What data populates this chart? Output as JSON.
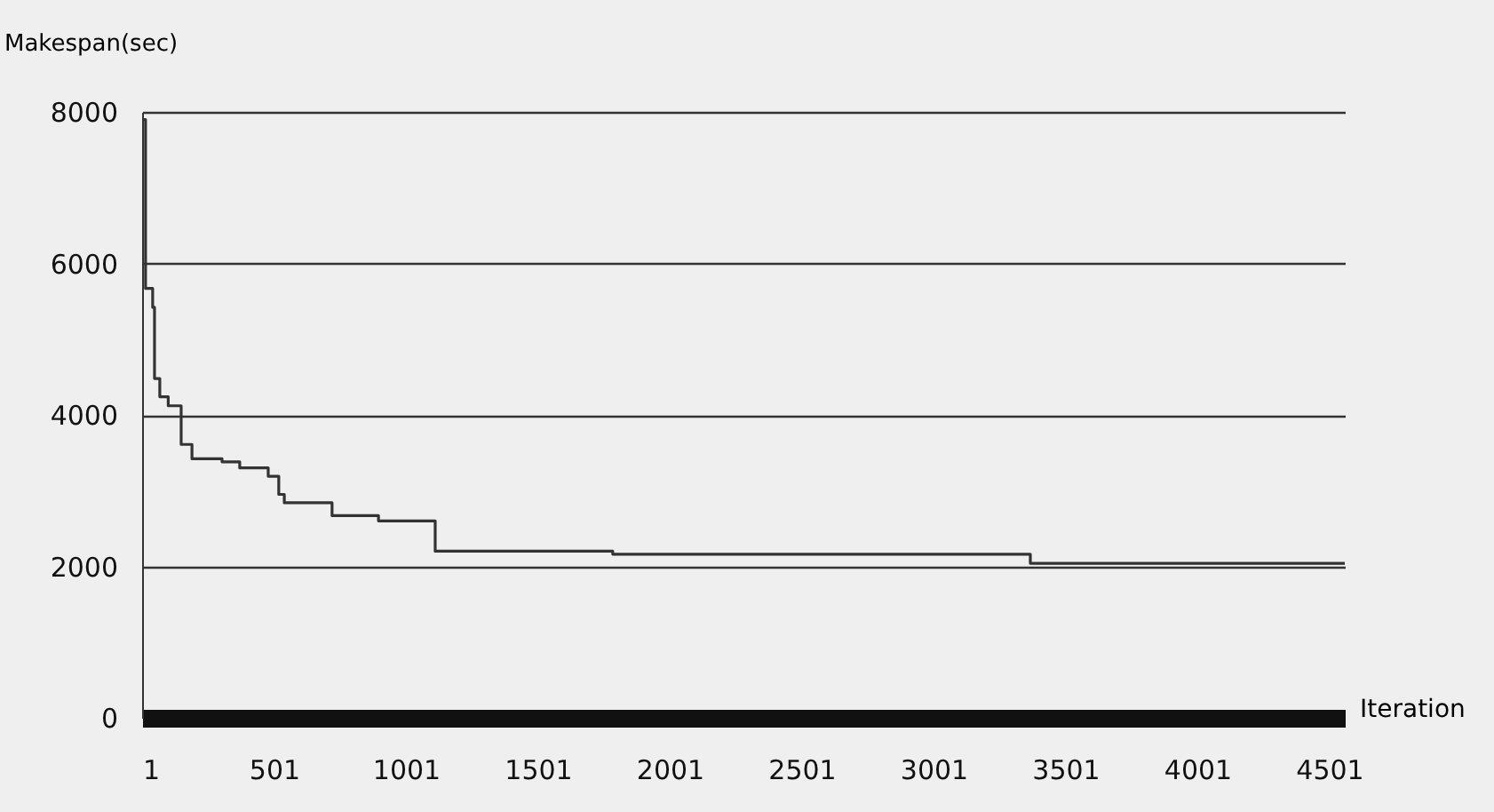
{
  "chart_data": {
    "type": "step",
    "xlabel": "Iteration",
    "ylabel": "Makespan(sec)",
    "x": [
      1,
      14,
      41,
      48,
      68,
      100,
      149,
      190,
      304,
      371,
      479,
      519,
      540,
      721,
      897,
      1112,
      1785,
      3368,
      4560
    ],
    "values": [
      7900,
      5670,
      5420,
      4480,
      4240,
      4120,
      3610,
      3420,
      3380,
      3300,
      3190,
      2950,
      2840,
      2670,
      2600,
      2200,
      2160,
      2040,
      2040
    ],
    "color": "#333333",
    "xlim": [
      1,
      4560
    ],
    "xticks": [
      1,
      501,
      1001,
      1501,
      2001,
      2501,
      3001,
      3501,
      4001,
      4501
    ],
    "ylim": [
      0,
      8000
    ],
    "yticks": [
      0,
      2000,
      4000,
      6000,
      8000
    ],
    "grid": "y",
    "marker": "none",
    "line_style": "solid"
  }
}
